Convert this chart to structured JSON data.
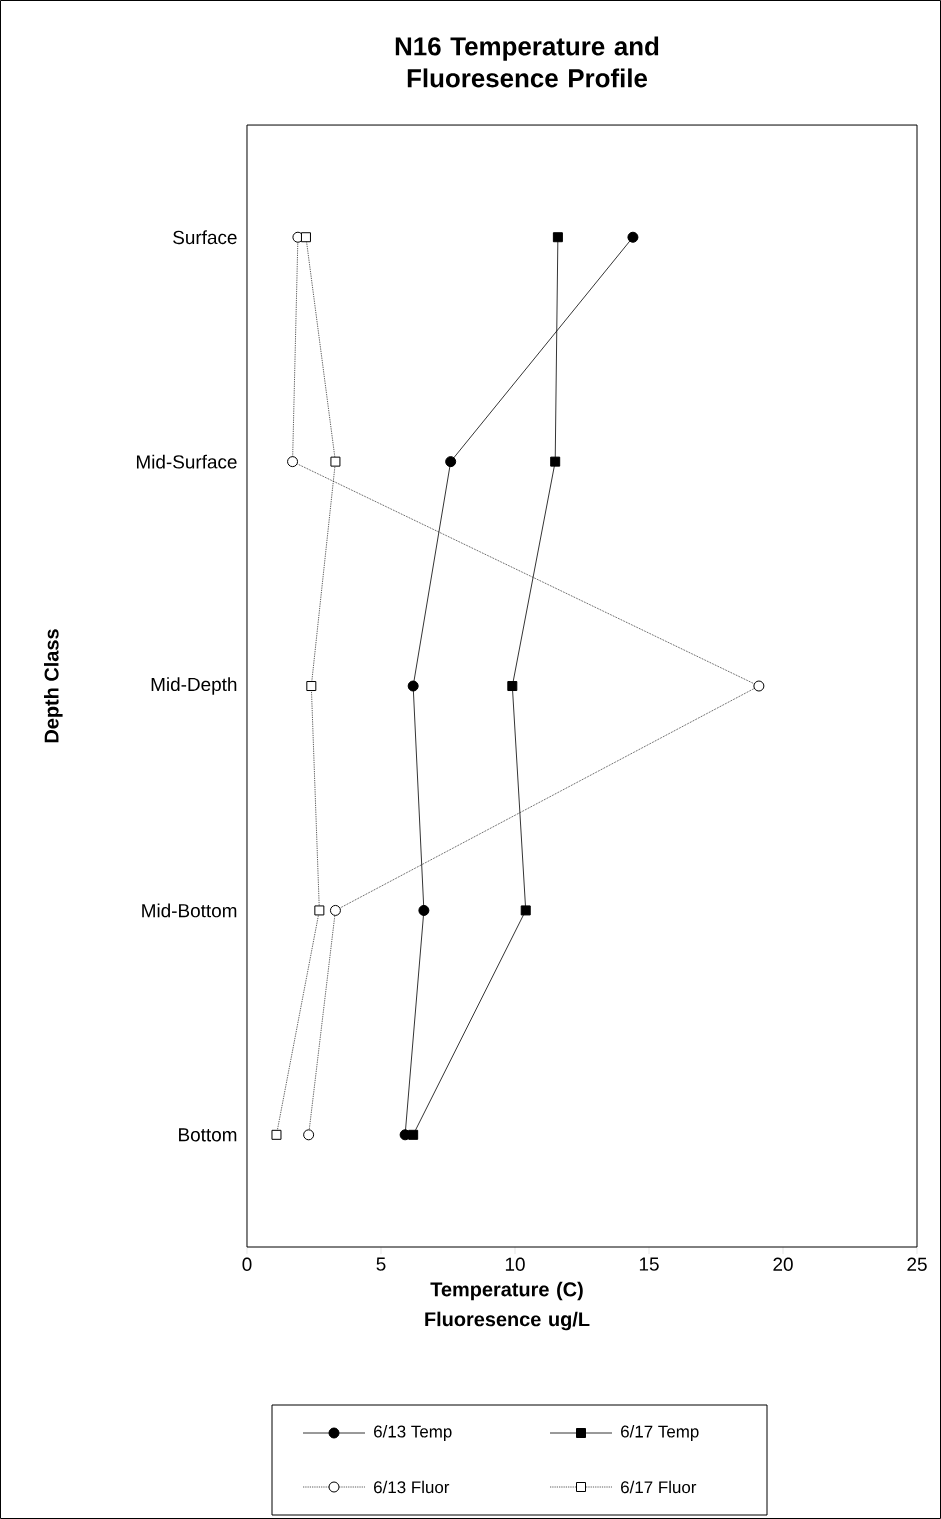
{
  "chart_data": {
    "type": "line",
    "orientation": "horizontal",
    "title": "N16 Temperature and Fluoresence Profile",
    "xlabel": "Temperature (C) Fluoresence ug/L",
    "ylabel": "Depth Class",
    "categories": [
      "Surface",
      "Mid-Surface",
      "Mid-Depth",
      "Mid-Bottom",
      "Bottom"
    ],
    "xlim": [
      0,
      25
    ],
    "xticks": [
      0,
      5,
      10,
      15,
      20,
      25
    ],
    "legend": "bottom",
    "series": [
      {
        "name": "6/13 Temp",
        "color": "#000000",
        "marker": "circle",
        "line_style": "solid",
        "values": [
          14.4,
          7.6,
          6.2,
          6.6,
          5.9
        ]
      },
      {
        "name": "6/17 Temp",
        "color": "#000000",
        "marker": "square",
        "line_style": "solid",
        "values": [
          11.6,
          11.5,
          9.9,
          10.4,
          6.2
        ]
      },
      {
        "name": "6/13 Fluor",
        "color": "#000000",
        "marker": "circle",
        "line_style": "dotted",
        "values": [
          1.9,
          1.7,
          19.1,
          3.3,
          2.3
        ]
      },
      {
        "name": "6/17 Fluor",
        "color": "#000000",
        "marker": "square",
        "line_style": "dotted",
        "values": [
          2.2,
          3.3,
          2.4,
          2.7,
          1.1
        ]
      }
    ]
  }
}
